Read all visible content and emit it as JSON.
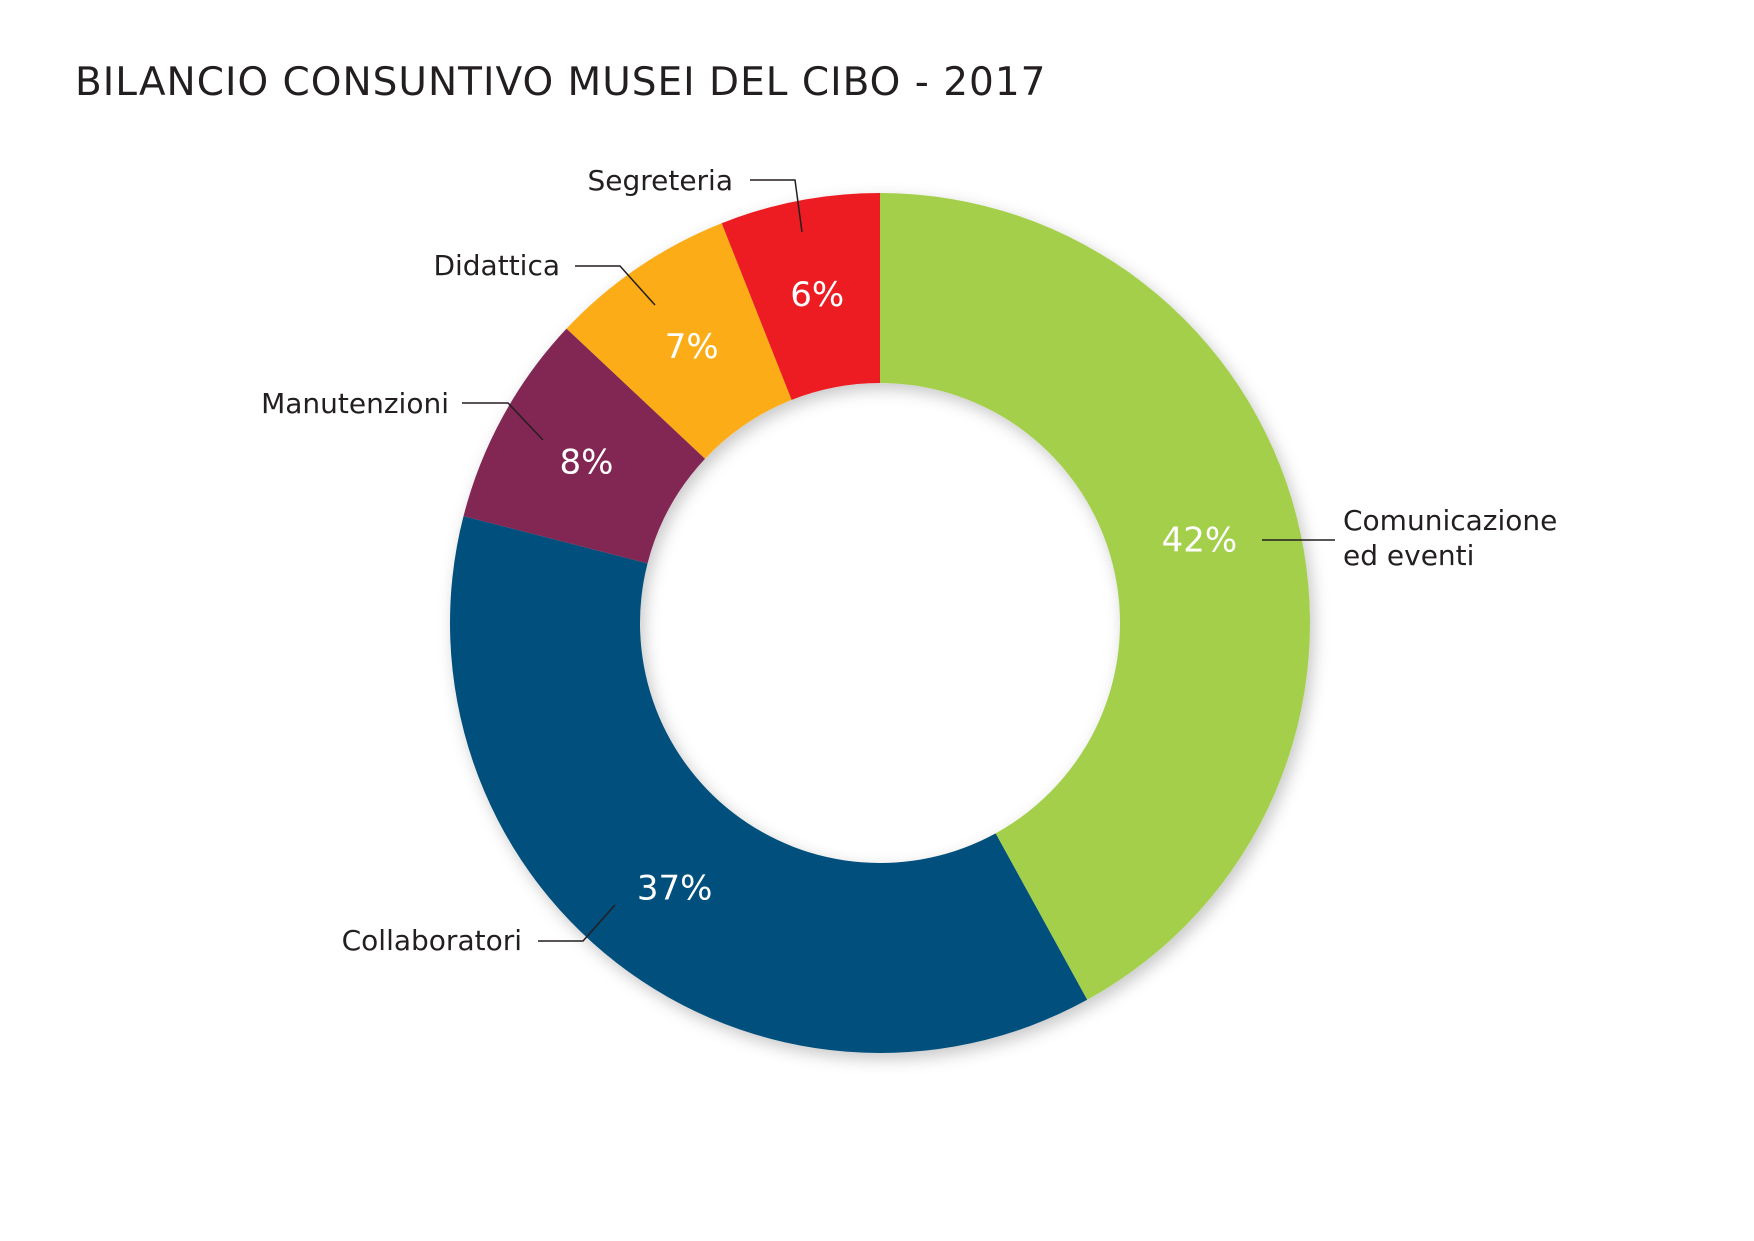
{
  "title": "BILANCIO CONSUNTIVO MUSEI DEL CIBO - 2017",
  "chart_data": {
    "type": "pie",
    "variant": "donut",
    "title": "BILANCIO CONSUNTIVO MUSEI DEL CIBO - 2017",
    "legend": "none",
    "slices": [
      {
        "label": [
          "Comunicazione",
          "ed eventi"
        ],
        "value": 42,
        "value_label": "42%",
        "color": "#a4cf4c"
      },
      {
        "label": [
          "Collaboratori"
        ],
        "value": 37,
        "value_label": "37%",
        "color": "#06507b"
      },
      {
        "label": [
          "Manutenzioni"
        ],
        "value": 8,
        "value_label": "8%",
        "color": "#822853"
      },
      {
        "label": [
          "Didattica"
        ],
        "value": 7,
        "value_label": "7%",
        "color": "#fcac17"
      },
      {
        "label": [
          "Segreteria"
        ],
        "value": 6,
        "value_label": "6%",
        "color": "#ec1c24"
      }
    ]
  }
}
